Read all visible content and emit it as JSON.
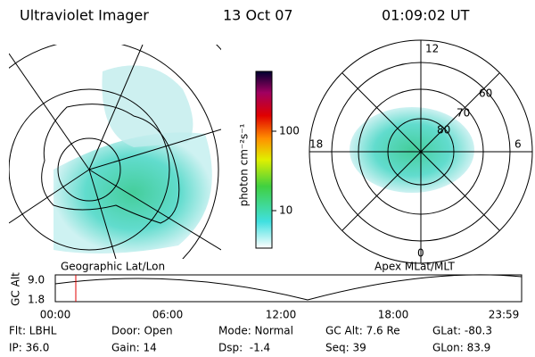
{
  "header": {
    "title": "Ultraviolet Imager",
    "date": "13 Oct 07",
    "time": "01:09:02 UT"
  },
  "colorbar": {
    "label": "photon cm⁻²s⁻¹",
    "ticks": [
      "100",
      "10"
    ]
  },
  "left_plot": {
    "caption": "Geographic Lat/Lon"
  },
  "right_plot": {
    "caption": "Apex MLat/MLT",
    "mlt_labels": [
      "12",
      "18",
      "6",
      "0"
    ],
    "lat_labels": [
      "60",
      "70",
      "80"
    ]
  },
  "altitude_plot": {
    "ylabel": "GC Alt",
    "yticks": [
      "9.0",
      "1.8"
    ],
    "xticks": [
      "00:00",
      "06:00",
      "12:00",
      "18:00",
      "23:59"
    ]
  },
  "info": {
    "rows": [
      [
        "Flt: LBHL",
        "Door: Open",
        "Mode: Normal",
        "GC Alt: 7.6 Re",
        "GLat: -80.3"
      ],
      [
        "IP: 36.0",
        "Gain: 14",
        "Dsp:  -1.4",
        "Seq: 39",
        "GLon: 83.9"
      ]
    ]
  }
}
